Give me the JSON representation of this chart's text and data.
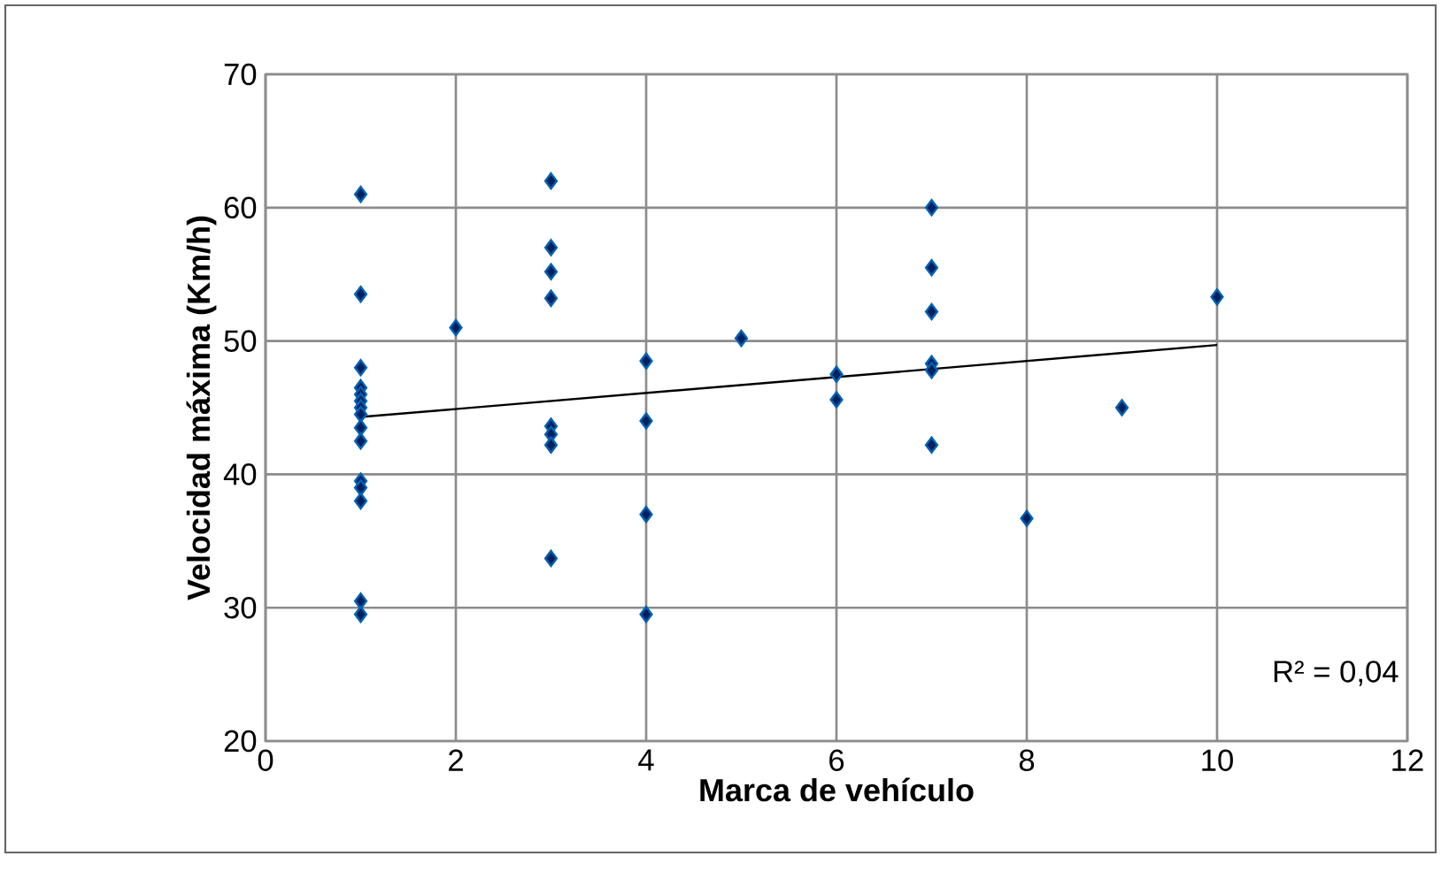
{
  "chart_data": {
    "type": "scatter",
    "xlabel": "Marca de vehículo",
    "ylabel": "Velocidad máxima (Km/h)",
    "xlim": [
      0,
      12
    ],
    "xticks": [
      0,
      2,
      4,
      6,
      8,
      10,
      12
    ],
    "ylim": [
      20,
      70
    ],
    "yticks": [
      20,
      30,
      40,
      50,
      60,
      70
    ],
    "grid": true,
    "marker": "diamond",
    "series": [
      {
        "color": "#002060",
        "x": [
          1,
          1,
          1,
          1,
          1,
          1,
          1,
          1,
          1,
          1,
          1,
          1,
          1,
          1,
          1,
          2,
          3,
          3,
          3,
          3,
          3,
          3,
          3,
          3,
          4,
          4,
          4,
          4,
          5,
          6,
          6,
          7,
          7,
          7,
          7,
          7,
          7,
          8,
          9,
          10
        ],
        "values": [
          61,
          53.5,
          48,
          46.5,
          46,
          45.5,
          45,
          44.5,
          43.5,
          42.5,
          39.5,
          39,
          38,
          30.5,
          29.5,
          51,
          62,
          57,
          55.2,
          53.2,
          43.6,
          43,
          42.2,
          33.7,
          48.5,
          44,
          37,
          29.5,
          50.2,
          47.5,
          45.6,
          60,
          55.5,
          52.2,
          48.3,
          47.8,
          42.2,
          36.7,
          45,
          53.3
        ]
      },
      {
        "type": "line",
        "color": "#000000",
        "marker": "none",
        "x": [
          1,
          10
        ],
        "values": [
          44.3,
          49.7
        ]
      }
    ],
    "annotations": [
      "R² = 0,04"
    ]
  }
}
